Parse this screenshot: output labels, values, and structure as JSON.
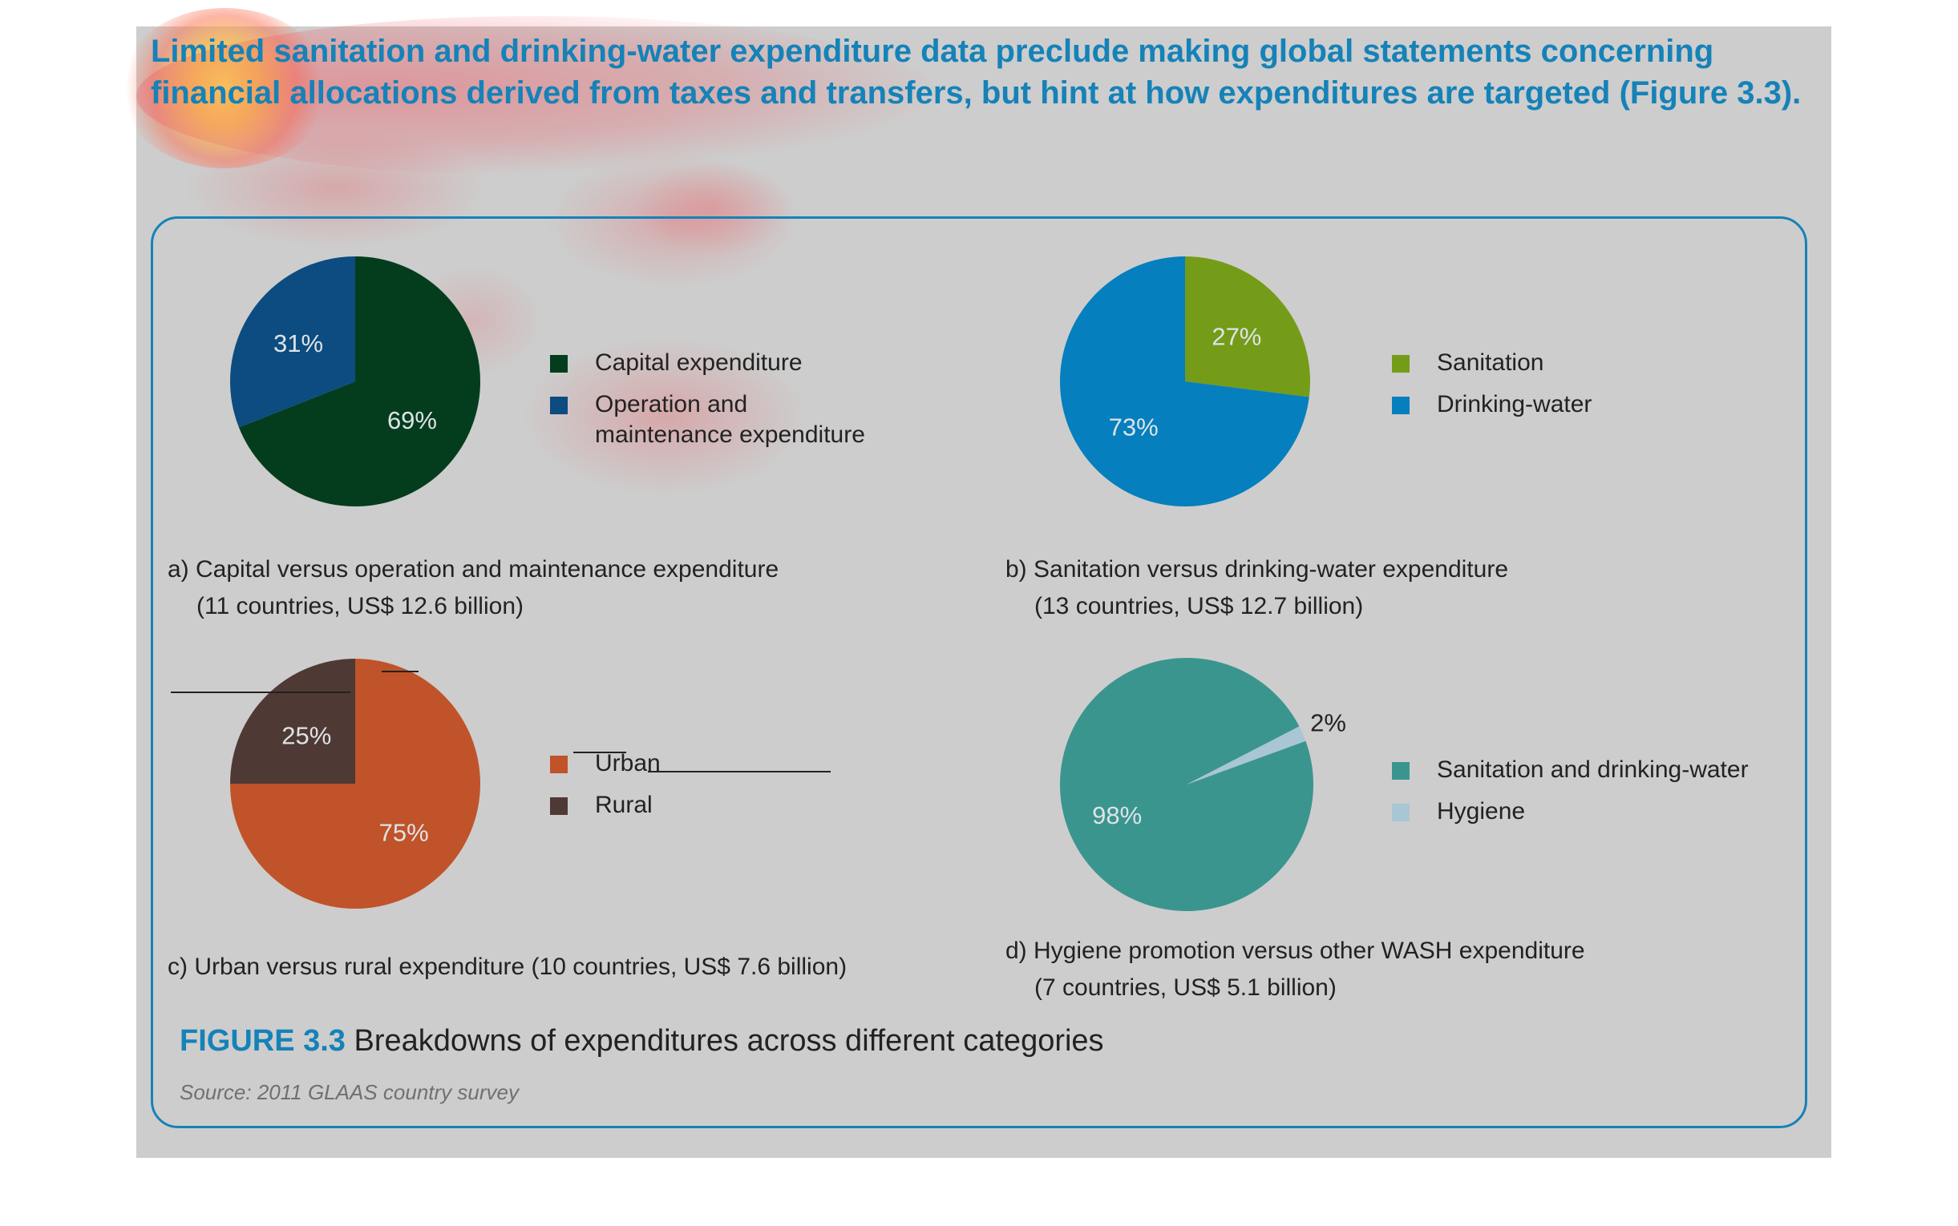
{
  "intro_text": "Limited sanitation and drinking-water expenditure data preclude making global statements concerning financial allocations derived from taxes and transfers, but hint at how expenditures are targeted (Figure 3.3).",
  "figure": {
    "number": "FIGURE 3.3",
    "title": "Breakdowns of expenditures across different categories",
    "source": "Source: 2011 GLAAS country survey"
  },
  "chart_data": [
    {
      "type": "pie",
      "caption": "a) Capital versus operation and maintenance expenditure",
      "caption_sub": "(11 countries, US$ 12.6 billion)",
      "slices": [
        {
          "name": "Capital expenditure",
          "value": 69,
          "label": "69%",
          "color": "#033d1e"
        },
        {
          "name": "Operation and maintenance expenditure",
          "value": 31,
          "label": "31%",
          "color": "#0c4c80"
        }
      ],
      "legend": [
        "Capital expenditure",
        "Operation and maintenance expenditure"
      ]
    },
    {
      "type": "pie",
      "caption": "b) Sanitation versus drinking-water expenditure",
      "caption_sub": "(13 countries, US$ 12.7 billion)",
      "slices": [
        {
          "name": "Sanitation",
          "value": 27,
          "label": "27%",
          "color": "#749c19"
        },
        {
          "name": "Drinking-water",
          "value": 73,
          "label": "73%",
          "color": "#057fbd"
        }
      ],
      "legend": [
        "Sanitation",
        "Drinking-water"
      ]
    },
    {
      "type": "pie",
      "caption": "c) Urban versus rural expenditure (10 countries, US$ 7.6 billion)",
      "caption_sub": "",
      "slices": [
        {
          "name": "Urban",
          "value": 75,
          "label": "75%",
          "color": "#c0532a"
        },
        {
          "name": "Rural",
          "value": 25,
          "label": "25%",
          "color": "#4f3935"
        }
      ],
      "legend": [
        "Urban",
        "Rural"
      ]
    },
    {
      "type": "pie",
      "caption": "d) Hygiene promotion versus other WASH expenditure",
      "caption_sub": "(7 countries, US$ 5.1 billion)",
      "slices": [
        {
          "name": "Sanitation and drinking-water",
          "value": 98,
          "label": "98%",
          "color": "#3b958f"
        },
        {
          "name": "Hygiene",
          "value": 2,
          "label": "2%",
          "color": "#a8c6d4"
        }
      ],
      "legend": [
        "Sanitation and drinking-water",
        "Hygiene"
      ]
    }
  ]
}
